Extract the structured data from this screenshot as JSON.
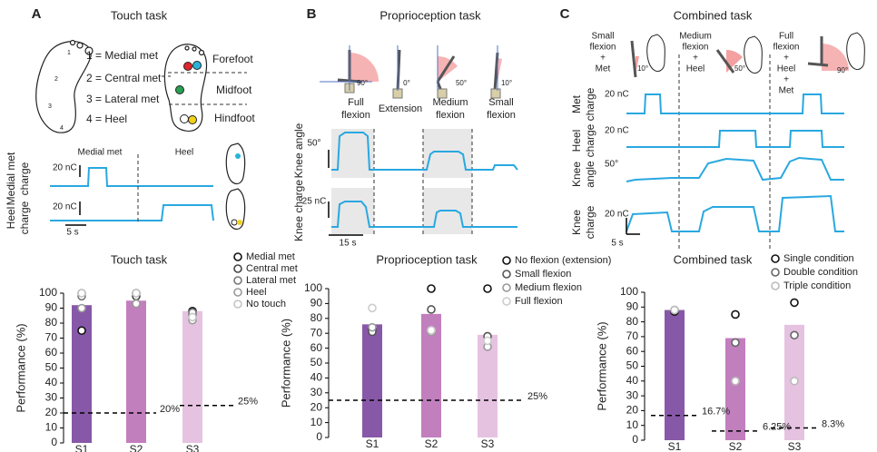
{
  "figure": {
    "a": {
      "label": "A",
      "title": "Touch task",
      "legend_items": [
        "1 = Medial met",
        "2 = Central met",
        "3 = Lateral met",
        "4 = Heel"
      ],
      "foot_numbers": [
        "1",
        "2",
        "3",
        "4"
      ],
      "regions": [
        "Forefoot",
        "Midfoot",
        "Hindfoot"
      ],
      "trace_headers": [
        "Medial met",
        "Heel"
      ],
      "trace_labels": [
        [
          "Medial met",
          "charge"
        ],
        [
          "Heel",
          "charge"
        ]
      ],
      "scales": [
        "20 nC",
        "20 nC",
        "5 s"
      ]
    },
    "b": {
      "label": "B",
      "title": "Proprioception task",
      "poses": [
        [
          "Full",
          "flexion"
        ],
        [
          "Extension"
        ],
        [
          "Medium",
          "flexion"
        ],
        [
          "Small",
          "flexion"
        ]
      ],
      "angles": [
        "90°",
        "0°",
        "50°",
        "10°"
      ],
      "trace_labels": [
        "Knee angle",
        "Knee charge"
      ],
      "scales": [
        "50°",
        "25 nC",
        "15 s"
      ]
    },
    "c": {
      "label": "C",
      "title": "Combined task",
      "conditions": [
        [
          "Small",
          "flexion",
          "+",
          "Met"
        ],
        [
          "Medium",
          "flexion",
          "+",
          "Heel"
        ],
        [
          "Full",
          "flexion",
          "+",
          "Heel",
          "+",
          "Met"
        ]
      ],
      "angles": [
        "10°",
        "50°",
        "90°"
      ],
      "trace_labels": [
        [
          "Met",
          "charge"
        ],
        [
          "Heel",
          "charge"
        ],
        [
          "Knee",
          "angle"
        ],
        [
          "Knee",
          "charge"
        ]
      ],
      "scales": [
        "20 nC",
        "20 nC",
        "50°",
        "20 nC",
        "5 s"
      ]
    }
  },
  "chart_data": [
    {
      "type": "bar",
      "title": "Touch task",
      "ylabel": "Performance (%)",
      "categories": [
        "S1",
        "S2",
        "S3"
      ],
      "values": [
        92,
        95,
        88
      ],
      "colors": [
        "#8858a8",
        "#c27fbe",
        "#e6c2e1"
      ],
      "ylim": [
        0,
        100
      ],
      "yticks": [
        0,
        10,
        20,
        30,
        40,
        50,
        60,
        70,
        80,
        90,
        100
      ],
      "series": [
        {
          "name": "Medial met",
          "color": "#111111",
          "values": [
            75,
            100,
            88
          ]
        },
        {
          "name": "Central met",
          "color": "#444444",
          "values": [
            100,
            98,
            85
          ]
        },
        {
          "name": "Lateral met",
          "color": "#777777",
          "values": [
            98,
            100,
            87
          ]
        },
        {
          "name": "Heel",
          "color": "#9a9a9a",
          "values": [
            90,
            93,
            82
          ]
        },
        {
          "name": "No touch",
          "color": "#c4c4c4",
          "values": [
            100,
            100,
            84
          ]
        }
      ],
      "reference_lines": [
        {
          "value": 20,
          "label": "20%"
        },
        {
          "value": 25,
          "label": "25%"
        }
      ]
    },
    {
      "type": "bar",
      "title": "Proprioception task",
      "ylabel": "Performance (%)",
      "categories": [
        "S1",
        "S2",
        "S3"
      ],
      "values": [
        76,
        83,
        69
      ],
      "colors": [
        "#8858a8",
        "#c27fbe",
        "#e6c2e1"
      ],
      "ylim": [
        0,
        100
      ],
      "yticks": [
        0,
        10,
        20,
        30,
        40,
        50,
        60,
        70,
        80,
        90,
        100
      ],
      "series": [
        {
          "name": "No flexion (extension)",
          "color": "#111111",
          "values": [
            73,
            100,
            100
          ]
        },
        {
          "name": "Small flexion",
          "color": "#555555",
          "values": [
            71,
            86,
            68
          ]
        },
        {
          "name": "Medium flexion",
          "color": "#999999",
          "values": [
            74,
            71,
            61
          ]
        },
        {
          "name": "Full flexion",
          "color": "#cccccc",
          "values": [
            87,
            72,
            65
          ]
        }
      ],
      "reference_lines": [
        {
          "value": 25,
          "label": "25%"
        }
      ]
    },
    {
      "type": "bar",
      "title": "Combined task",
      "ylabel": "Performance (%)",
      "categories": [
        "S1",
        "S2",
        "S3"
      ],
      "values": [
        88,
        69,
        78
      ],
      "colors": [
        "#8858a8",
        "#c27fbe",
        "#e6c2e1"
      ],
      "ylim": [
        0,
        100
      ],
      "yticks": [
        0,
        10,
        20,
        30,
        40,
        50,
        60,
        70,
        80,
        90,
        100
      ],
      "series": [
        {
          "name": "Single condition",
          "color": "#111111",
          "values": [
            87,
            85,
            93
          ]
        },
        {
          "name": "Double condition",
          "color": "#666666",
          "values": [
            88,
            66,
            71
          ]
        },
        {
          "name": "Triple condition",
          "color": "#bbbbbb",
          "values": [
            88,
            40,
            40
          ]
        }
      ],
      "reference_lines": [
        {
          "value": 16.7,
          "label": "16.7%"
        },
        {
          "value": 6.25,
          "label": "6.25%"
        },
        {
          "value": 8.3,
          "label": "8.3%"
        }
      ]
    }
  ]
}
